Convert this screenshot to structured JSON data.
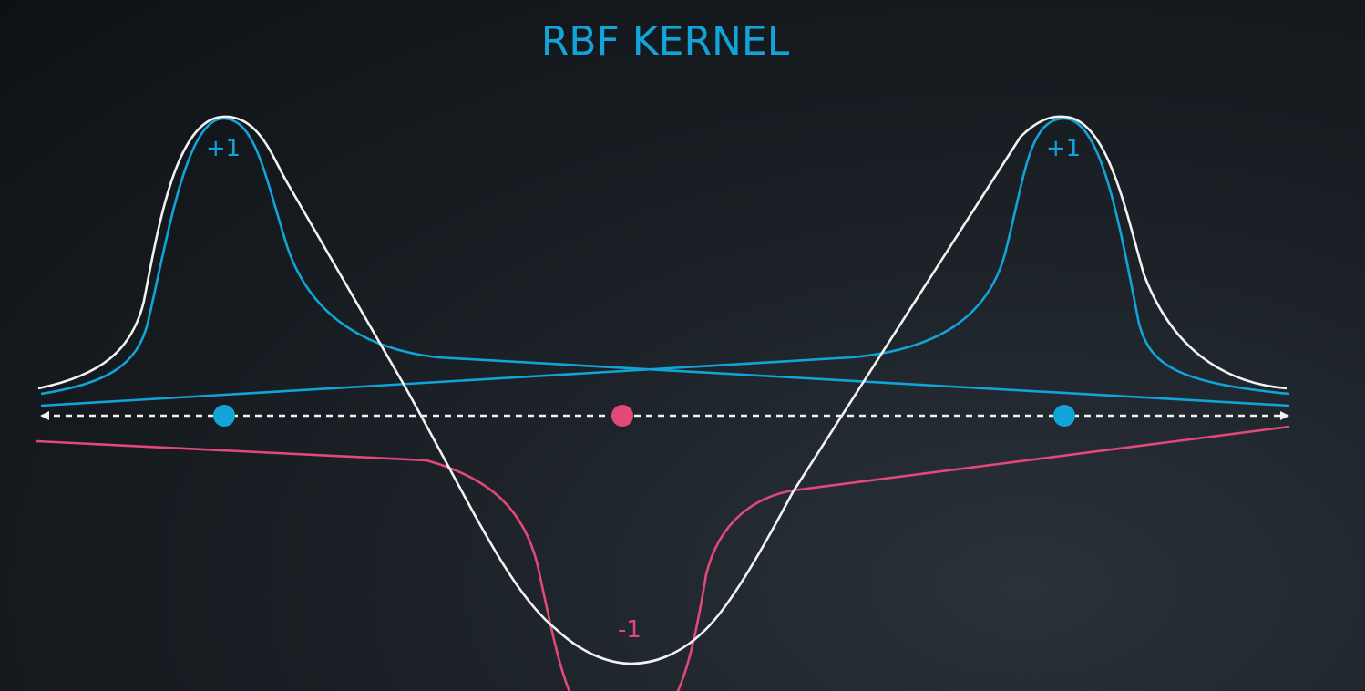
{
  "title": "RBF KERNEL",
  "colors": {
    "blue": "#12a4d8",
    "pink": "#e24878",
    "white": "#f2f2f2",
    "background": "#14191e"
  },
  "labels": {
    "left_peak": "+1",
    "right_peak": "+1",
    "trough": "-1"
  },
  "points": [
    {
      "class": "positive",
      "color": "blue"
    },
    {
      "class": "negative",
      "color": "pink"
    },
    {
      "class": "positive",
      "color": "blue"
    }
  ]
}
